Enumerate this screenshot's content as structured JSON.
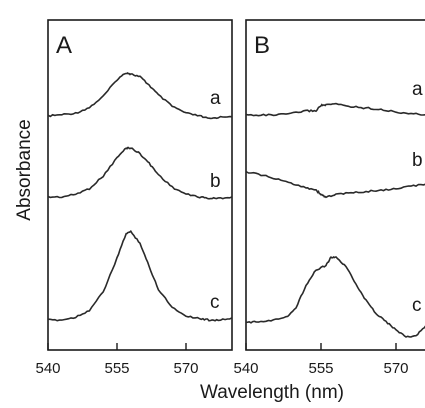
{
  "figure": {
    "ylabel": "Absorbance",
    "xlabel": "Wavelength (nm)"
  },
  "chart_data": [
    {
      "type": "line",
      "panel": "A",
      "xlim": [
        540,
        580
      ],
      "xticks": [
        540,
        555,
        570
      ],
      "xlabel": "Wavelength (nm)",
      "ylabel": "Absorbance",
      "grid": false,
      "series": [
        {
          "name": "a",
          "x": [
            540,
            543,
            546,
            549,
            552,
            555,
            557,
            558,
            560,
            562,
            564,
            567,
            570,
            573,
            575,
            577,
            580
          ],
          "y": [
            0.0,
            0.01,
            0.02,
            0.06,
            0.14,
            0.26,
            0.31,
            0.3,
            0.28,
            0.22,
            0.15,
            0.07,
            0.02,
            0.0,
            -0.02,
            -0.01,
            0.0
          ]
        },
        {
          "name": "b",
          "x": [
            540,
            543,
            546,
            549,
            552,
            555,
            557,
            558,
            560,
            562,
            564,
            567,
            570,
            573,
            575,
            577,
            580
          ],
          "y": [
            0.0,
            0.0,
            0.02,
            0.06,
            0.15,
            0.28,
            0.35,
            0.35,
            0.31,
            0.24,
            0.16,
            0.07,
            0.02,
            0.0,
            -0.01,
            -0.01,
            0.0
          ]
        },
        {
          "name": "c",
          "x": [
            540,
            543,
            546,
            549,
            552,
            555,
            557,
            558,
            560,
            562,
            564,
            567,
            570,
            573,
            575,
            577,
            580
          ],
          "y": [
            0.0,
            0.0,
            0.02,
            0.07,
            0.2,
            0.44,
            0.62,
            0.63,
            0.55,
            0.38,
            0.22,
            0.09,
            0.03,
            0.01,
            0.0,
            0.0,
            0.01
          ]
        }
      ]
    },
    {
      "type": "line",
      "panel": "B",
      "xlim": [
        540,
        580
      ],
      "xticks": [
        540,
        555,
        570
      ],
      "xlabel": "Wavelength (nm)",
      "ylabel": "Absorbance",
      "grid": false,
      "series": [
        {
          "name": "a",
          "x": [
            540,
            543,
            546,
            549,
            552,
            554,
            555,
            556,
            558,
            561,
            564,
            567,
            570,
            573,
            576,
            580
          ],
          "y": [
            0.0,
            0.0,
            0.0,
            0.01,
            0.03,
            0.03,
            0.07,
            0.07,
            0.08,
            0.06,
            0.05,
            0.04,
            0.02,
            0.01,
            0.0,
            0.0
          ]
        },
        {
          "name": "b",
          "x": [
            540,
            543,
            546,
            549,
            552,
            554,
            555,
            556,
            558,
            561,
            564,
            567,
            570,
            573,
            576,
            580
          ],
          "y": [
            0.0,
            -0.02,
            -0.05,
            -0.08,
            -0.11,
            -0.13,
            -0.16,
            -0.18,
            -0.16,
            -0.15,
            -0.14,
            -0.13,
            -0.12,
            -0.1,
            -0.09,
            -0.06
          ]
        },
        {
          "name": "c",
          "x": [
            540,
            542,
            545,
            548,
            550,
            552,
            554,
            556,
            557,
            558,
            560,
            562,
            564,
            566,
            568,
            570,
            572,
            574,
            576,
            578,
            580
          ],
          "y": [
            0.0,
            0.01,
            0.02,
            0.04,
            0.11,
            0.27,
            0.38,
            0.41,
            0.47,
            0.47,
            0.4,
            0.28,
            0.16,
            0.07,
            0.01,
            -0.05,
            -0.1,
            -0.09,
            -0.02,
            0.0,
            0.02
          ]
        }
      ]
    }
  ]
}
